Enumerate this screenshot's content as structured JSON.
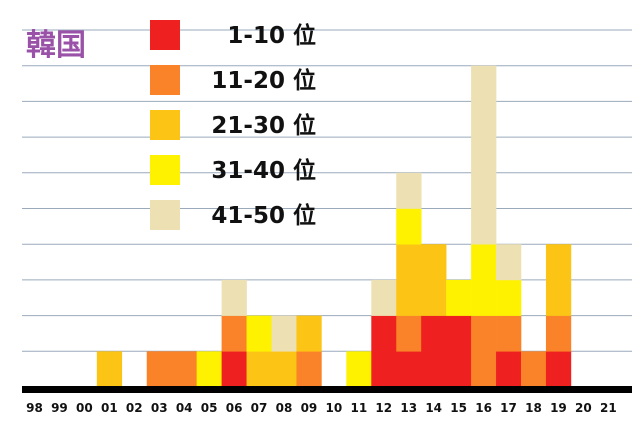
{
  "title": "韓国",
  "chart_data": {
    "type": "bar",
    "stacked": true,
    "categories": [
      "98",
      "99",
      "00",
      "01",
      "02",
      "03",
      "04",
      "05",
      "06",
      "07",
      "08",
      "09",
      "10",
      "11",
      "12",
      "13",
      "14",
      "15",
      "16",
      "17",
      "18",
      "19",
      "20",
      "21"
    ],
    "ylim": [
      0,
      10
    ],
    "grid": true,
    "legend_position": "top-left",
    "series": [
      {
        "name": "1-10 位",
        "color": "#ee2020",
        "values": [
          0,
          0,
          0,
          0,
          0,
          0,
          0,
          0,
          1,
          0,
          0,
          0,
          0,
          0,
          2,
          1,
          2,
          2,
          0,
          1,
          0,
          1,
          0,
          0
        ]
      },
      {
        "name": "11-20 位",
        "color": "#fa8228",
        "values": [
          0,
          0,
          0,
          0,
          0,
          1,
          1,
          0,
          1,
          0,
          0,
          1,
          0,
          0,
          0,
          1,
          0,
          0,
          2,
          1,
          1,
          1,
          0,
          0
        ]
      },
      {
        "name": "21-30 位",
        "color": "#fcc414",
        "values": [
          0,
          0,
          0,
          1,
          0,
          0,
          0,
          0,
          0,
          1,
          1,
          1,
          0,
          0,
          0,
          2,
          2,
          0,
          0,
          0,
          0,
          2,
          0,
          0
        ]
      },
      {
        "name": "31-40 位",
        "color": "#fff200",
        "values": [
          0,
          0,
          0,
          0,
          0,
          0,
          0,
          1,
          0,
          1,
          0,
          0,
          0,
          1,
          0,
          1,
          0,
          1,
          2,
          1,
          0,
          0,
          0,
          0
        ]
      },
      {
        "name": "41-50 位",
        "color": "#ede0b2",
        "values": [
          0,
          0,
          0,
          0,
          0,
          0,
          0,
          0,
          1,
          0,
          1,
          0,
          0,
          0,
          1,
          1,
          0,
          0,
          5,
          1,
          0,
          0,
          0,
          0
        ]
      }
    ]
  }
}
